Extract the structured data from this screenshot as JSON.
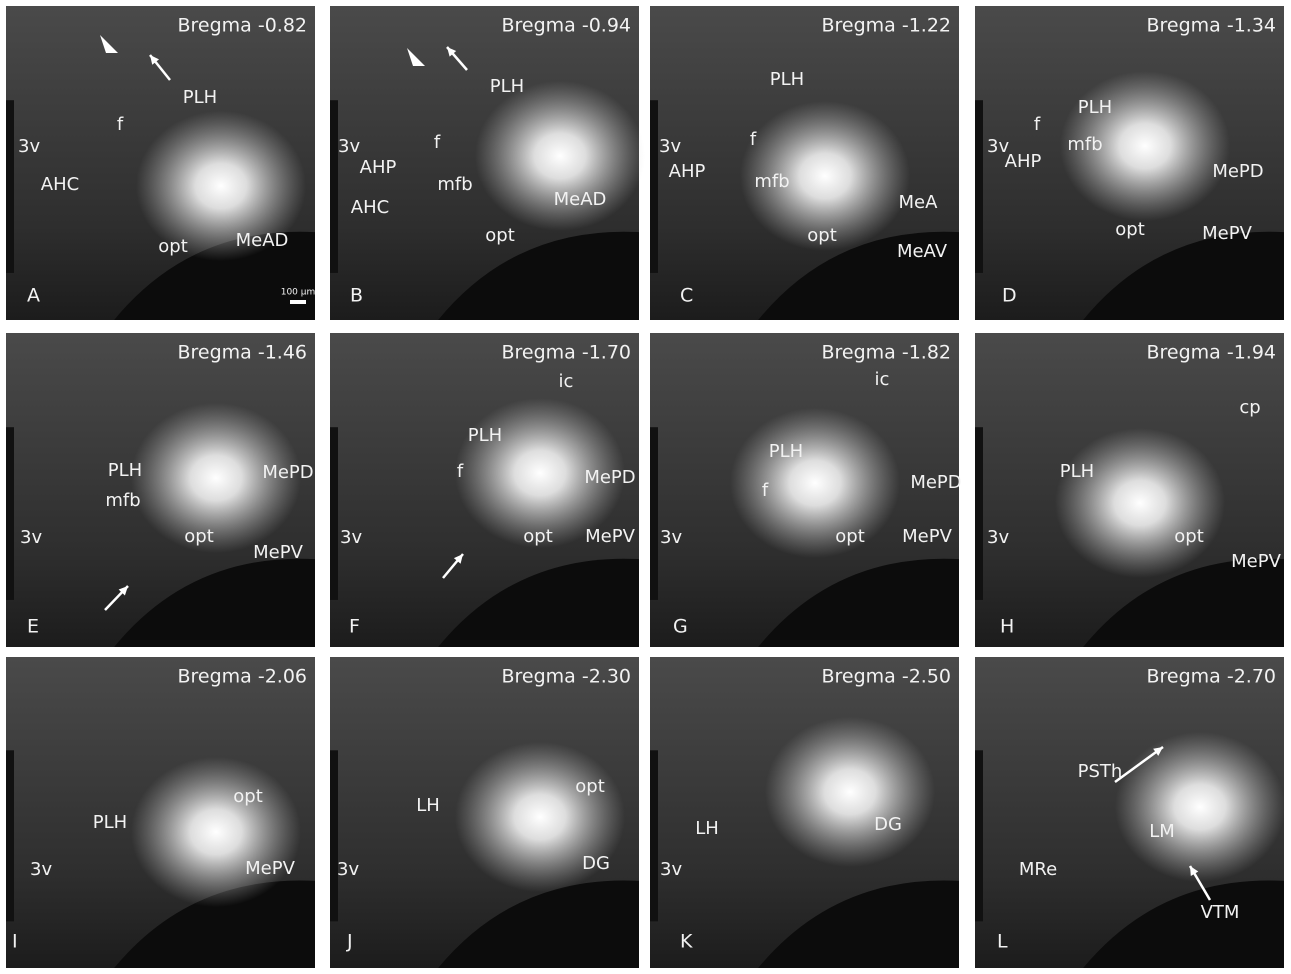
{
  "panels": [
    {
      "letter": "A",
      "bregma": "Bregma -0.82",
      "labels": [
        "PLH",
        "f",
        "3v",
        "AHC",
        "opt",
        "MeAD"
      ],
      "scale_bar": "100 µm"
    },
    {
      "letter": "B",
      "bregma": "Bregma -0.94",
      "labels": [
        "PLH",
        "3v",
        "AHP",
        "f",
        "mfb",
        "AHC",
        "MeAD",
        "opt"
      ]
    },
    {
      "letter": "C",
      "bregma": "Bregma -1.22",
      "labels": [
        "PLH",
        "3v",
        "AHP",
        "f",
        "mfb",
        "MeA",
        "opt",
        "MeAV"
      ]
    },
    {
      "letter": "D",
      "bregma": "Bregma -1.34",
      "labels": [
        "PLH",
        "f",
        "3v",
        "mfb",
        "AHP",
        "MePD",
        "opt",
        "MePV"
      ]
    },
    {
      "letter": "E",
      "bregma": "Bregma -1.46",
      "labels": [
        "PLH",
        "mfb",
        "MePD",
        "3v",
        "opt",
        "MePV"
      ]
    },
    {
      "letter": "F",
      "bregma": "Bregma -1.70",
      "labels": [
        "ic",
        "PLH",
        "f",
        "MePD",
        "3v",
        "opt",
        "MePV"
      ]
    },
    {
      "letter": "G",
      "bregma": "Bregma -1.82",
      "labels": [
        "ic",
        "PLH",
        "f",
        "MePD",
        "3v",
        "opt",
        "MePV"
      ]
    },
    {
      "letter": "H",
      "bregma": "Bregma -1.94",
      "labels": [
        "cp",
        "PLH",
        "3v",
        "opt",
        "MePV"
      ]
    },
    {
      "letter": "I",
      "bregma": "Bregma -2.06",
      "labels": [
        "opt",
        "PLH",
        "3v",
        "MePV"
      ]
    },
    {
      "letter": "J",
      "bregma": "Bregma -2.30",
      "labels": [
        "opt",
        "LH",
        "3v",
        "DG"
      ]
    },
    {
      "letter": "K",
      "bregma": "Bregma -2.50",
      "labels": [
        "LH",
        "DG",
        "3v"
      ]
    },
    {
      "letter": "L",
      "bregma": "Bregma -2.70",
      "labels": [
        "PSTh",
        "LM",
        "MRe",
        "VTM"
      ]
    }
  ]
}
